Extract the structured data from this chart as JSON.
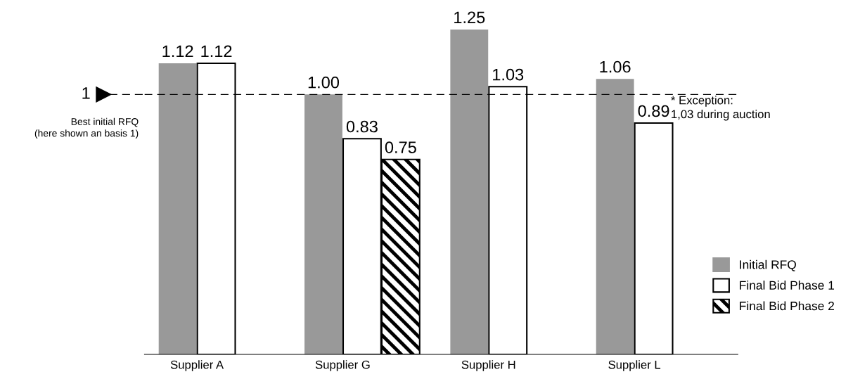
{
  "chart_data": {
    "type": "bar",
    "categories": [
      "Supplier A",
      "Supplier G",
      "Supplier H",
      "Supplier L"
    ],
    "series": [
      {
        "name": "Initial RFQ",
        "color": "#999999",
        "values": [
          1.12,
          1.0,
          1.25,
          1.06
        ],
        "value_labels": [
          "1.12",
          "1.00",
          "1.25",
          "1.06"
        ]
      },
      {
        "name": "Final Bid Phase 1",
        "color": "#ffffff",
        "values": [
          1.12,
          0.83,
          1.03,
          0.89
        ],
        "value_labels": [
          "1.12",
          "0.83",
          "1.03",
          "0.89"
        ]
      },
      {
        "name": "Final Bid Phase 2",
        "color": "#000000",
        "values": [
          null,
          0.75,
          null,
          null
        ],
        "value_labels": [
          null,
          "0.75",
          null,
          null
        ]
      }
    ],
    "tick_labels": "x",
    "ref_lines": [
      {
        "axis": "y",
        "value": 1,
        "label": "1",
        "line_style": "dashed",
        "color": "#000000"
      }
    ],
    "annotations": [
      "Best initial RFQ\n(here shown an basis 1)",
      "* Exception:\n1,03 during auction"
    ],
    "legend": "bottom right",
    "grid": false
  }
}
